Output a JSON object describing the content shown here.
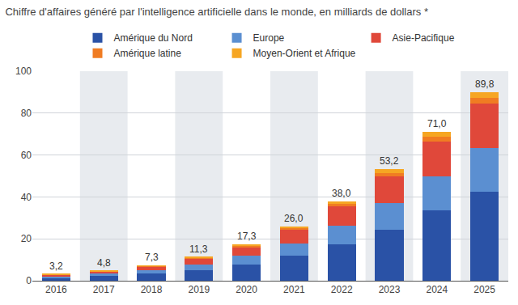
{
  "chart_data": {
    "type": "bar",
    "title": "Chiffre d'affaires généré par l'intelligence artificielle dans le monde, en milliards de dollars *",
    "categories": [
      "2016",
      "2017",
      "2018",
      "2019",
      "2020",
      "2021",
      "2022",
      "2023",
      "2024",
      "2025"
    ],
    "series": [
      {
        "name": "Amérique du Nord",
        "color": "#2a52a6",
        "values": [
          1.5,
          2.3,
          3.4,
          5.2,
          7.8,
          11.8,
          17.3,
          24.5,
          33.5,
          42.3
        ]
      },
      {
        "name": "Europe",
        "color": "#5b8fd1",
        "values": [
          0.7,
          1.1,
          1.7,
          2.7,
          4.1,
          6.0,
          9.0,
          12.5,
          16.2,
          21.0
        ]
      },
      {
        "name": "Asie-Pacifique",
        "color": "#e0483a",
        "values": [
          0.7,
          1.0,
          1.6,
          2.7,
          4.2,
          6.4,
          9.3,
          12.8,
          16.9,
          21.3
        ]
      },
      {
        "name": "Amérique latine",
        "color": "#f07c22",
        "values": [
          0.15,
          0.2,
          0.3,
          0.4,
          0.6,
          0.9,
          1.2,
          1.7,
          2.2,
          2.6
        ]
      },
      {
        "name": "Moyen-Orient et Afrique",
        "color": "#f6a623",
        "values": [
          0.15,
          0.2,
          0.3,
          0.3,
          0.6,
          0.9,
          1.2,
          1.7,
          2.2,
          2.6
        ]
      }
    ],
    "totals": [
      3.2,
      4.8,
      7.3,
      11.3,
      17.3,
      26.0,
      38.0,
      53.2,
      71.0,
      89.8
    ],
    "total_labels": [
      "3,2",
      "4,8",
      "7,3",
      "11,3",
      "17,3",
      "26,0",
      "38,0",
      "53,2",
      "71,0",
      "89,8"
    ],
    "ylim": [
      0,
      100
    ],
    "yticks": [
      0,
      20,
      40,
      60,
      80,
      100
    ],
    "stacked": true,
    "grid": true,
    "legend": "top"
  }
}
